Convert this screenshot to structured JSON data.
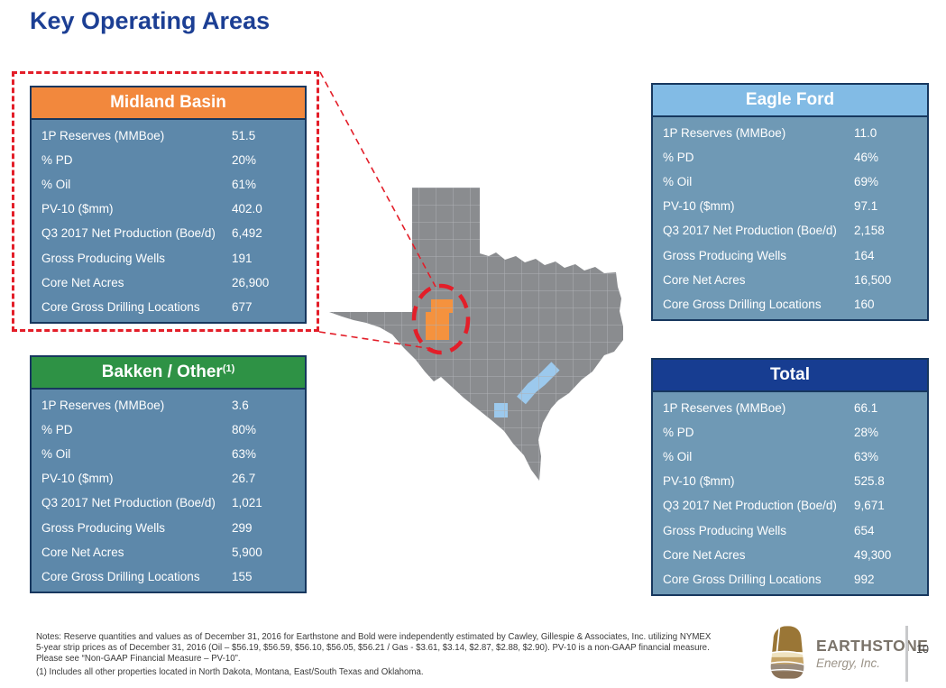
{
  "slide": {
    "title": "Key Operating Areas",
    "page_number": "10"
  },
  "colors": {
    "title": "#1c3f94",
    "table_border": "#17375e",
    "highlight_red": "#e31e29",
    "map_gray": "#8a8c8f",
    "county_line": "#afb1b4",
    "midland_orange": "#f5923e",
    "eagleford_blue": "#9cc9ed"
  },
  "row_labels": [
    "1P Reserves (MMBoe)",
    "% PD",
    "% Oil",
    "PV-10 ($mm)",
    "Q3 2017 Net Production (Boe/d)",
    "Gross Producing Wells",
    "Core Net Acres",
    "Core Gross Drilling Locations"
  ],
  "tables": [
    {
      "title": "Midland Basin",
      "superscript": "",
      "header_color": "#f2883d",
      "body_color": "#5d88aa",
      "values": [
        "51.5",
        "20%",
        "61%",
        "402.0",
        "6,492",
        "191",
        "26,900",
        "677"
      ]
    },
    {
      "title": "Eagle Ford",
      "superscript": "",
      "header_color": "#82bbe5",
      "body_color": "#6f99b5",
      "values": [
        "11.0",
        "46%",
        "69%",
        "97.1",
        "2,158",
        "164",
        "16,500",
        "160"
      ]
    },
    {
      "title": "Bakken / Other",
      "superscript": "(1)",
      "header_color": "#2e9245",
      "body_color": "#5d88aa",
      "values": [
        "3.6",
        "80%",
        "63%",
        "26.7",
        "1,021",
        "299",
        "5,900",
        "155"
      ]
    },
    {
      "title": "Total",
      "superscript": "",
      "header_color": "#173d91",
      "body_color": "#6f99b5",
      "values": [
        "66.1",
        "28%",
        "63%",
        "525.8",
        "9,671",
        "654",
        "49,300",
        "992"
      ]
    }
  ],
  "map": {
    "regions": [
      {
        "name": "Midland Basin acreage",
        "color": "#f5923e"
      },
      {
        "name": "Eagle Ford acreage",
        "color": "#9cc9ed"
      }
    ]
  },
  "notes": {
    "line1": "Notes:   Reserve quantities and values as of December 31, 2016 for Earthstone and Bold were independently estimated by Cawley, Gillespie & Associates, Inc. utilizing NYMEX",
    "line2": "5-year strip prices as of December 31, 2016 (Oil – $56.19, $56.59, $56.10, $56.05, $56.21 / Gas - $3.61, $3.14, $2.87, $2.88, $2.90). PV-10 is a non-GAAP financial measure.",
    "line3": "Please see “Non-GAAP Financial Measure – PV-10”.",
    "line4": "(1)     Includes all other properties located in North Dakota, Montana, East/South Texas and Oklahoma."
  },
  "logo": {
    "name": "EARTHSTONE",
    "subtitle": "Energy, Inc."
  }
}
